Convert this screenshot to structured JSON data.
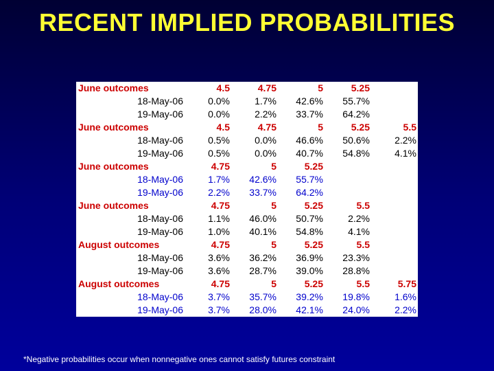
{
  "title": "RECENT IMPLIED PROBABILITIES",
  "colors": {
    "header": "#cc0000",
    "blue_rows": "#0000cc",
    "body": "#000000",
    "title": "#ffff33"
  },
  "rows": [
    {
      "type": "header",
      "label": "June outcomes",
      "cells": [
        "4.5",
        "4.75",
        "5",
        "5.25",
        ""
      ]
    },
    {
      "type": "data",
      "color": "black",
      "label": "18-May-06",
      "cells": [
        "0.0%",
        "1.7%",
        "42.6%",
        "55.7%",
        ""
      ]
    },
    {
      "type": "data",
      "color": "black",
      "label": "19-May-06",
      "cells": [
        "0.0%",
        "2.2%",
        "33.7%",
        "64.2%",
        ""
      ]
    },
    {
      "type": "header",
      "label": "June outcomes",
      "cells": [
        "4.5",
        "4.75",
        "5",
        "5.25",
        "5.5"
      ]
    },
    {
      "type": "data",
      "color": "black",
      "label": "18-May-06",
      "cells": [
        "0.5%",
        "0.0%",
        "46.6%",
        "50.6%",
        "2.2%"
      ]
    },
    {
      "type": "data",
      "color": "black",
      "label": "19-May-06",
      "cells": [
        "0.5%",
        "0.0%",
        "40.7%",
        "54.8%",
        "4.1%"
      ]
    },
    {
      "type": "header",
      "label": "June outcomes",
      "cells": [
        "4.75",
        "5",
        "5.25",
        "",
        ""
      ]
    },
    {
      "type": "data",
      "color": "blue",
      "label": "18-May-06",
      "cells": [
        "1.7%",
        "42.6%",
        "55.7%",
        "",
        ""
      ]
    },
    {
      "type": "data",
      "color": "blue",
      "label": "19-May-06",
      "cells": [
        "2.2%",
        "33.7%",
        "64.2%",
        "",
        ""
      ]
    },
    {
      "type": "header",
      "label": "June outcomes",
      "cells": [
        "4.75",
        "5",
        "5.25",
        "5.5",
        ""
      ]
    },
    {
      "type": "data",
      "color": "black",
      "label": "18-May-06",
      "cells": [
        "1.1%",
        "46.0%",
        "50.7%",
        "2.2%",
        ""
      ]
    },
    {
      "type": "data",
      "color": "black",
      "label": "19-May-06",
      "cells": [
        "1.0%",
        "40.1%",
        "54.8%",
        "4.1%",
        ""
      ]
    },
    {
      "type": "header",
      "label": "August outcomes",
      "cells": [
        "4.75",
        "5",
        "5.25",
        "5.5",
        ""
      ]
    },
    {
      "type": "data",
      "color": "black",
      "label": "18-May-06",
      "cells": [
        "3.6%",
        "36.2%",
        "36.9%",
        "23.3%",
        ""
      ]
    },
    {
      "type": "data",
      "color": "black",
      "label": "19-May-06",
      "cells": [
        "3.6%",
        "28.7%",
        "39.0%",
        "28.8%",
        ""
      ]
    },
    {
      "type": "header",
      "label": "August outcomes",
      "cells": [
        "4.75",
        "5",
        "5.25",
        "5.5",
        "5.75"
      ]
    },
    {
      "type": "data",
      "color": "blue",
      "label": "18-May-06",
      "cells": [
        "3.7%",
        "35.7%",
        "39.2%",
        "19.8%",
        "1.6%"
      ]
    },
    {
      "type": "data",
      "color": "blue",
      "label": "19-May-06",
      "cells": [
        "3.7%",
        "28.0%",
        "42.1%",
        "24.0%",
        "2.2%"
      ]
    }
  ],
  "footnote": "*Negative probabilities occur when nonnegative ones cannot satisfy futures constraint"
}
